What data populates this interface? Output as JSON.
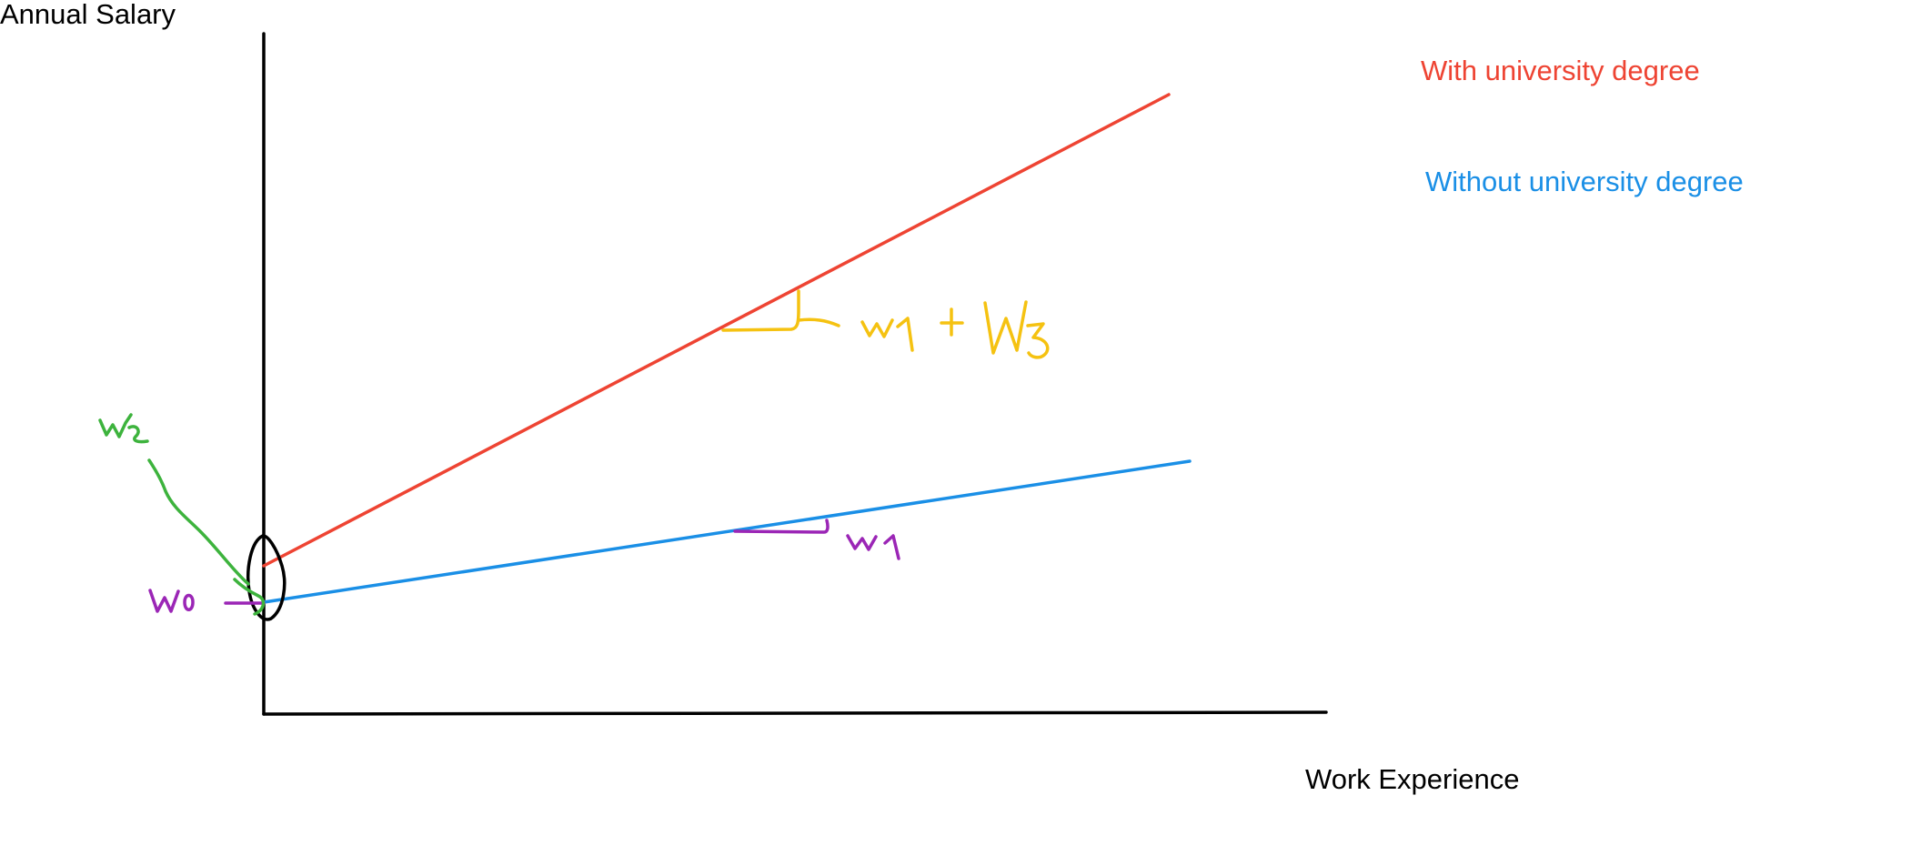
{
  "axes": {
    "y_label": "Annual Salary",
    "x_label": "Work Experience"
  },
  "legend": {
    "with_degree": "With university degree",
    "without_degree": "Without university degree"
  },
  "annotations": {
    "intercept": "w0",
    "slope_without": "w1",
    "degree_offset": "w2",
    "slope_with": "w1 + w3"
  },
  "colors": {
    "axis": "#000000",
    "with_degree": "#ee4433",
    "without_degree": "#1a8fe6",
    "intercept_note": "#9b26b6",
    "offset_note": "#3db33d",
    "slope_with_note": "#f5c211"
  }
}
